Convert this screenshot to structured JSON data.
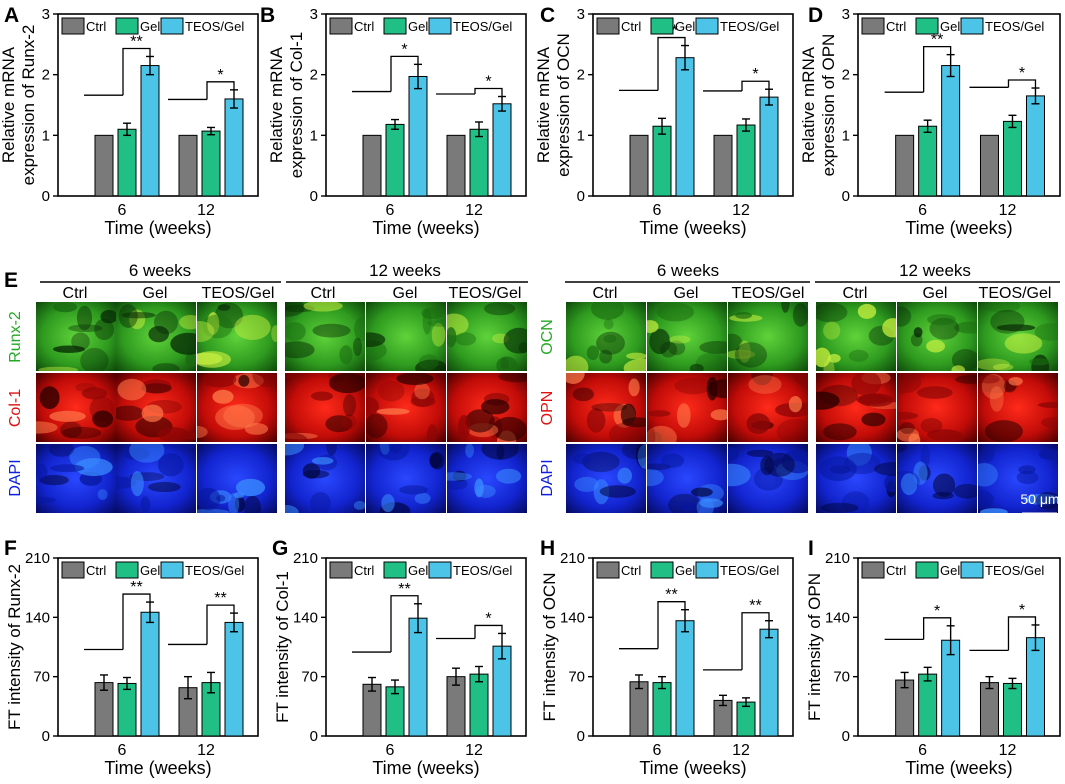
{
  "figure": {
    "colors": {
      "ctrl": "#7a7a7a",
      "gel": "#1fbf86",
      "teos": "#4cc4e8",
      "green": "#22aa22",
      "red": "#e01010",
      "blue": "#1020e0"
    },
    "legend": [
      "Ctrl",
      "Gel",
      "TEOS/Gel"
    ],
    "xlabel": "Time (weeks)",
    "groups": [
      "6",
      "12"
    ]
  },
  "chart_data": [
    {
      "panel": "A",
      "type": "bar",
      "ylabel": [
        "Relative mRNA",
        "expression of Runx-2"
      ],
      "xlabel": "Time (weeks)",
      "categories": [
        "6",
        "12"
      ],
      "ylim": [
        0,
        3
      ],
      "yticks": [
        "0",
        "1",
        "2",
        "3"
      ],
      "series": [
        {
          "name": "Ctrl",
          "values": [
            1.0,
            1.0
          ],
          "errors": [
            0,
            0
          ]
        },
        {
          "name": "Gel",
          "values": [
            1.1,
            1.07
          ],
          "errors": [
            0.1,
            0.06
          ]
        },
        {
          "name": "TEOS/Gel",
          "values": [
            2.15,
            1.6
          ],
          "errors": [
            0.15,
            0.15
          ]
        }
      ],
      "significance": [
        "**",
        "*"
      ]
    },
    {
      "panel": "B",
      "type": "bar",
      "ylabel": [
        "Relative mRNA",
        "expression of Col-1"
      ],
      "xlabel": "Time (weeks)",
      "categories": [
        "6",
        "12"
      ],
      "ylim": [
        0,
        3
      ],
      "yticks": [
        "0",
        "1",
        "2",
        "3"
      ],
      "series": [
        {
          "name": "Ctrl",
          "values": [
            1.0,
            1.0
          ],
          "errors": [
            0,
            0
          ]
        },
        {
          "name": "Gel",
          "values": [
            1.18,
            1.1
          ],
          "errors": [
            0.08,
            0.12
          ]
        },
        {
          "name": "TEOS/Gel",
          "values": [
            1.97,
            1.52
          ],
          "errors": [
            0.2,
            0.12
          ]
        }
      ],
      "significance": [
        "*",
        "*"
      ]
    },
    {
      "panel": "C",
      "type": "bar",
      "ylabel": [
        "Relative mRNA",
        "expression of OCN"
      ],
      "xlabel": "Time (weeks)",
      "categories": [
        "6",
        "12"
      ],
      "ylim": [
        0,
        3
      ],
      "yticks": [
        "0",
        "1",
        "2",
        "3"
      ],
      "series": [
        {
          "name": "Ctrl",
          "values": [
            1.0,
            1.0
          ],
          "errors": [
            0,
            0
          ]
        },
        {
          "name": "Gel",
          "values": [
            1.15,
            1.17
          ],
          "errors": [
            0.13,
            0.1
          ]
        },
        {
          "name": "TEOS/Gel",
          "values": [
            2.28,
            1.63
          ],
          "errors": [
            0.2,
            0.13
          ]
        }
      ],
      "significance": [
        "**",
        "*"
      ]
    },
    {
      "panel": "D",
      "type": "bar",
      "ylabel": [
        "Relative mRNA",
        "expression of OPN"
      ],
      "xlabel": "Time (weeks)",
      "categories": [
        "6",
        "12"
      ],
      "ylim": [
        0,
        3
      ],
      "yticks": [
        "0",
        "1",
        "2",
        "3"
      ],
      "series": [
        {
          "name": "Ctrl",
          "values": [
            1.0,
            1.0
          ],
          "errors": [
            0,
            0
          ]
        },
        {
          "name": "Gel",
          "values": [
            1.15,
            1.23
          ],
          "errors": [
            0.1,
            0.1
          ]
        },
        {
          "name": "TEOS/Gel",
          "values": [
            2.15,
            1.65
          ],
          "errors": [
            0.18,
            0.13
          ]
        }
      ],
      "significance": [
        "**",
        "*"
      ]
    },
    {
      "panel": "F",
      "type": "bar",
      "ylabel": [
        "FT intensity of Runx-2"
      ],
      "xlabel": "Time (weeks)",
      "categories": [
        "6",
        "12"
      ],
      "ylim": [
        0,
        210
      ],
      "yticks": [
        "0",
        "70",
        "140",
        "210"
      ],
      "series": [
        {
          "name": "Ctrl",
          "values": [
            63,
            57
          ],
          "errors": [
            9,
            13
          ]
        },
        {
          "name": "Gel",
          "values": [
            62,
            63
          ],
          "errors": [
            7,
            12
          ]
        },
        {
          "name": "TEOS/Gel",
          "values": [
            146,
            134
          ],
          "errors": [
            12,
            11
          ]
        }
      ],
      "significance": [
        "**",
        "**"
      ]
    },
    {
      "panel": "G",
      "type": "bar",
      "ylabel": [
        "FT intensity of Col-1"
      ],
      "xlabel": "Time (weeks)",
      "categories": [
        "6",
        "12"
      ],
      "ylim": [
        0,
        210
      ],
      "yticks": [
        "0",
        "70",
        "140",
        "210"
      ],
      "series": [
        {
          "name": "Ctrl",
          "values": [
            61,
            70
          ],
          "errors": [
            8,
            10
          ]
        },
        {
          "name": "Gel",
          "values": [
            58,
            73
          ],
          "errors": [
            8,
            9
          ]
        },
        {
          "name": "TEOS/Gel",
          "values": [
            139,
            106
          ],
          "errors": [
            17,
            15
          ]
        }
      ],
      "significance": [
        "**",
        "*"
      ]
    },
    {
      "panel": "H",
      "type": "bar",
      "ylabel": [
        "FT intensity of OCN"
      ],
      "xlabel": "Time (weeks)",
      "categories": [
        "6",
        "12"
      ],
      "ylim": [
        0,
        210
      ],
      "yticks": [
        "0",
        "70",
        "140",
        "210"
      ],
      "series": [
        {
          "name": "Ctrl",
          "values": [
            64,
            42
          ],
          "errors": [
            8,
            6
          ]
        },
        {
          "name": "Gel",
          "values": [
            63,
            40
          ],
          "errors": [
            7,
            5
          ]
        },
        {
          "name": "TEOS/Gel",
          "values": [
            136,
            126
          ],
          "errors": [
            13,
            10
          ]
        }
      ],
      "significance": [
        "**",
        "**"
      ]
    },
    {
      "panel": "I",
      "type": "bar",
      "ylabel": [
        "FT intensity of OPN"
      ],
      "xlabel": "Time (weeks)",
      "categories": [
        "6",
        "12"
      ],
      "ylim": [
        0,
        210
      ],
      "yticks": [
        "0",
        "70",
        "140",
        "210"
      ],
      "series": [
        {
          "name": "Ctrl",
          "values": [
            66,
            63
          ],
          "errors": [
            9,
            7
          ]
        },
        {
          "name": "Gel",
          "values": [
            73,
            62
          ],
          "errors": [
            8,
            6
          ]
        },
        {
          "name": "TEOS/Gel",
          "values": [
            113,
            116
          ],
          "errors": [
            17,
            15
          ]
        }
      ],
      "significance": [
        "*",
        "*"
      ]
    }
  ],
  "panel_e": {
    "letter": "E",
    "left": {
      "headers": [
        "6 weeks",
        "12 weeks"
      ],
      "columns": [
        "Ctrl",
        "Gel",
        "TEOS/Gel",
        "Ctrl",
        "Gel",
        "TEOS/Gel"
      ],
      "rows": [
        "Runx-2",
        "Col-1",
        "DAPI"
      ]
    },
    "right": {
      "headers": [
        "6 weeks",
        "12 weeks"
      ],
      "columns": [
        "Ctrl",
        "Gel",
        "TEOS/Gel",
        "Ctrl",
        "Gel",
        "TEOS/Gel"
      ],
      "rows": [
        "OCN",
        "OPN",
        "DAPI"
      ]
    },
    "scale_bar": "50 μm"
  }
}
